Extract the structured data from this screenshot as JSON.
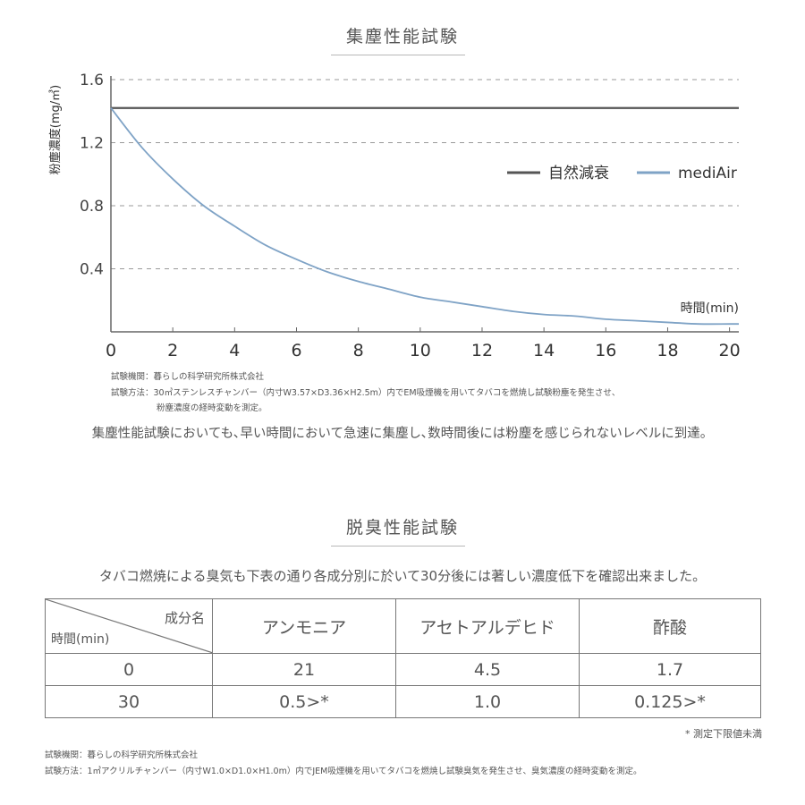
{
  "dust_section": {
    "title": "集塵性能試験",
    "note_lines": [
      "試験機関：暮らしの科学研究所株式会社",
      "試験方法：30㎥ステンレスチャンバー（内寸W3.57×D3.36×H2.5m）内でEM吸煙機を用いてタバコを燃焼し試験粉塵を発生させ、",
      "粉塵濃度の経時変動を測定。"
    ],
    "summary": "集塵性能試験においても､早い時間において急速に集塵し､数時間後には粉塵を感じられないレベルに到達。"
  },
  "chart_data": {
    "type": "line",
    "title": "",
    "xlabel": "時間(min)",
    "ylabel": "粉塵濃度(mg/㎥)",
    "xlim": [
      0,
      20.3
    ],
    "ylim": [
      0,
      1.6
    ],
    "xticks": [
      0,
      2,
      4,
      6,
      8,
      10,
      12,
      14,
      16,
      18,
      20
    ],
    "yticks": [
      0.4,
      0.8,
      1.2,
      1.6
    ],
    "grid": "horizontal-dashed",
    "legend_position": "right",
    "series": [
      {
        "name": "自然減衰",
        "color": "#555555",
        "x": [
          0,
          20.3
        ],
        "y": [
          1.42,
          1.42
        ]
      },
      {
        "name": "mediAir",
        "color": "#7fa3c6",
        "x": [
          0,
          1,
          2,
          3,
          4,
          5,
          6,
          7,
          8,
          9,
          10,
          11,
          12,
          13,
          14,
          15,
          16,
          17,
          18,
          19,
          20,
          20.3
        ],
        "y": [
          1.42,
          1.17,
          0.97,
          0.8,
          0.67,
          0.55,
          0.46,
          0.38,
          0.32,
          0.27,
          0.22,
          0.19,
          0.16,
          0.13,
          0.11,
          0.1,
          0.08,
          0.07,
          0.06,
          0.05,
          0.05,
          0.05
        ]
      }
    ]
  },
  "odor_section": {
    "title": "脱臭性能試験",
    "intro": "タバコ燃焼による臭気も下表の通り各成分別に於いて30分後には著しい濃度低下を確認出来ました。",
    "table": {
      "corner_top": "成分名",
      "corner_bottom": "時間(min)",
      "columns": [
        "アンモニア",
        "アセトアルデヒド",
        "酢酸"
      ],
      "rows": [
        {
          "time": "0",
          "values": [
            "21",
            "4.5",
            "1.7"
          ]
        },
        {
          "time": "30",
          "values": [
            "0.5>*",
            "1.0",
            "0.125>*"
          ]
        }
      ]
    },
    "footnote": "* 測定下限値未満",
    "note_lines": [
      "試験機関：暮らしの科学研究所株式会社",
      "試験方法：1㎥アクリルチャンバー（内寸W1.0×D1.0×H1.0m）内でJEM吸煙機を用いてタバコを燃焼し試験臭気を発生させ、臭気濃度の経時変動を測定。"
    ]
  }
}
